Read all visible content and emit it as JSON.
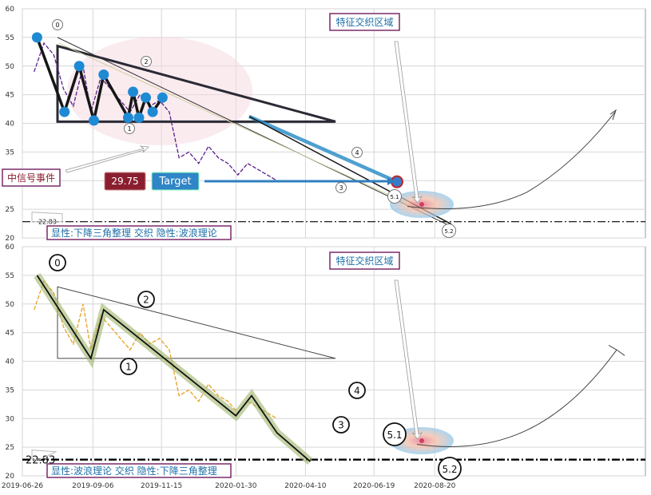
{
  "chart_data": [
    {
      "type": "line",
      "panel": "top",
      "ylim": [
        20,
        60
      ],
      "yticks": [
        20,
        25,
        30,
        35,
        40,
        45,
        50,
        55,
        60
      ],
      "grid": true,
      "support_line": 22.83,
      "support_label": "22.83",
      "callout_region": "特征交织区域",
      "callout_event": "中信号事件",
      "price_box": "29.75",
      "target_box": "Target",
      "bottom_note": "显性:下降三角整理 交织 隐性:波浪理论",
      "wave_labels": [
        "0",
        "1",
        "2",
        "3",
        "4",
        "5.1",
        "5.2"
      ],
      "series": [
        {
          "role": "price",
          "color": "#5a1d8a",
          "x": [
            "2019-07-08",
            "2019-07-18",
            "2019-07-28",
            "2019-08-07",
            "2019-08-17",
            "2019-08-27",
            "2019-09-04",
            "2019-09-14",
            "2019-09-24",
            "2019-10-04",
            "2019-10-14",
            "2019-10-24",
            "2019-11-03",
            "2019-11-13",
            "2019-11-23",
            "2019-12-03",
            "2019-12-13",
            "2019-12-23",
            "2020-01-02",
            "2020-01-12",
            "2020-01-22",
            "2020-02-01",
            "2020-02-11",
            "2020-02-21",
            "2020-03-02",
            "2020-03-12"
          ],
          "y": [
            49,
            54,
            52,
            46,
            43,
            50,
            42,
            48,
            46,
            44,
            42,
            45,
            43,
            44,
            42,
            34,
            35,
            33,
            36,
            34,
            33,
            31,
            33,
            32,
            31,
            30
          ]
        },
        {
          "role": "triangle_pivots",
          "color": "#1f8ad4",
          "x": [
            "2019-07-11",
            "2019-08-08",
            "2019-08-23",
            "2019-09-07",
            "2019-09-17",
            "2019-10-12",
            "2019-10-17",
            "2019-10-23",
            "2019-10-30",
            "2019-11-06",
            "2019-11-16"
          ],
          "y": [
            55,
            42,
            50,
            40.5,
            48.5,
            41,
            45.5,
            41,
            44.5,
            42,
            44.5
          ]
        }
      ]
    },
    {
      "type": "line",
      "panel": "bottom",
      "ylim": [
        20,
        60
      ],
      "yticks": [
        20,
        25,
        30,
        35,
        40,
        45,
        50,
        55,
        60
      ],
      "grid": true,
      "support_line": 22.83,
      "support_label": "22.83",
      "callout_region": "特征交织区域",
      "bottom_note": "显性:波浪理论 交织 隐性:下降三角整理",
      "wave_labels": [
        "0",
        "1",
        "2",
        "3",
        "4",
        "5.1",
        "5.2"
      ],
      "categories": [
        "2019-06-26",
        "2019-09-06",
        "2019-11-15",
        "2020-01-30",
        "2020-04-10",
        "2020-06-19",
        "2020-08-20"
      ],
      "series": [
        {
          "role": "price",
          "color": "#e8a020",
          "x": [
            "2019-07-08",
            "2019-07-18",
            "2019-07-28",
            "2019-08-07",
            "2019-08-17",
            "2019-08-27",
            "2019-09-04",
            "2019-09-14",
            "2019-09-24",
            "2019-10-04",
            "2019-10-14",
            "2019-10-24",
            "2019-11-03",
            "2019-11-13",
            "2019-11-23",
            "2019-12-03",
            "2019-12-13",
            "2019-12-23",
            "2020-01-02",
            "2020-01-12",
            "2020-01-22",
            "2020-02-01",
            "2020-02-11",
            "2020-02-21",
            "2020-03-02",
            "2020-03-12"
          ],
          "y": [
            49,
            54,
            52,
            46,
            43,
            50,
            42,
            48,
            46,
            44,
            42,
            45,
            43,
            44,
            42,
            34,
            35,
            33,
            36,
            34,
            33,
            31,
            33,
            32,
            31,
            30
          ]
        }
      ]
    }
  ]
}
